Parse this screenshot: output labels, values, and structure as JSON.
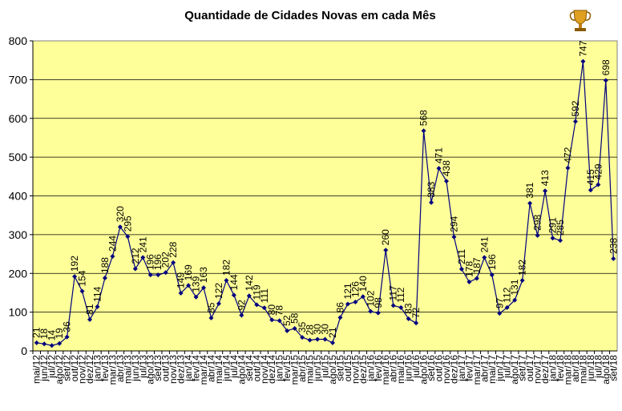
{
  "chart_data": {
    "type": "line",
    "title": "Quantidade de Cidades Novas em cada Mês",
    "xlabel": "",
    "ylabel": "",
    "ylim": [
      0,
      800
    ],
    "yticks": [
      0,
      100,
      200,
      300,
      400,
      500,
      600,
      700,
      800
    ],
    "grid": true,
    "legend": "none",
    "trophy_icon": "trophy-icon",
    "colors": {
      "plot_bg": "#ffff99",
      "line": "#000080",
      "marker": "#000080"
    },
    "categories": [
      "mai/12",
      "jun/12",
      "jul/12",
      "ago/12",
      "set/12",
      "out/12",
      "nov/12",
      "dez/12",
      "jan/13",
      "fev/13",
      "mar/13",
      "abr/13",
      "mai/13",
      "jun/13",
      "jul/13",
      "ago/13",
      "set/13",
      "out/13",
      "nov/13",
      "dez/13",
      "jan/14",
      "fev/14",
      "mar/14",
      "abr/14",
      "mai/14",
      "jun/14",
      "jul/14",
      "ago/14",
      "set/14",
      "out/14",
      "nov/14",
      "dez/14",
      "jan/15",
      "fev/15",
      "mar/15",
      "abr/15",
      "mai/15",
      "jun/15",
      "jul/15",
      "ago/15",
      "set/15",
      "out/15",
      "nov/15",
      "dez/15",
      "jan/16",
      "fev/16",
      "mar/16",
      "abr/16",
      "mai/16",
      "jun/16",
      "jul/16",
      "ago/16",
      "set/16",
      "out/16",
      "nov/16",
      "dez/16",
      "jan/17",
      "fev/17",
      "mar/17",
      "abr/17",
      "mai/17",
      "jun/17",
      "jul/17",
      "ago/17",
      "set/17",
      "out/17",
      "nov/17",
      "dez/17",
      "jan/18",
      "fev/18",
      "mar/18",
      "abr/18",
      "mai/18",
      "jun/18",
      "jul/18",
      "ago/18",
      "set/18"
    ],
    "values": [
      21,
      18,
      14,
      19,
      36,
      192,
      154,
      81,
      114,
      188,
      244,
      320,
      295,
      212,
      241,
      196,
      196,
      202,
      228,
      149,
      169,
      139,
      163,
      85,
      122,
      182,
      144,
      92,
      142,
      119,
      111,
      80,
      78,
      52,
      58,
      35,
      28,
      30,
      30,
      21,
      86,
      121,
      126,
      140,
      102,
      98,
      260,
      117,
      112,
      83,
      72,
      568,
      383,
      471,
      438,
      294,
      211,
      178,
      187,
      241,
      196,
      97,
      112,
      131,
      182,
      381,
      298,
      413,
      291,
      285,
      472,
      592,
      747,
      415,
      429,
      698,
      238
    ]
  }
}
